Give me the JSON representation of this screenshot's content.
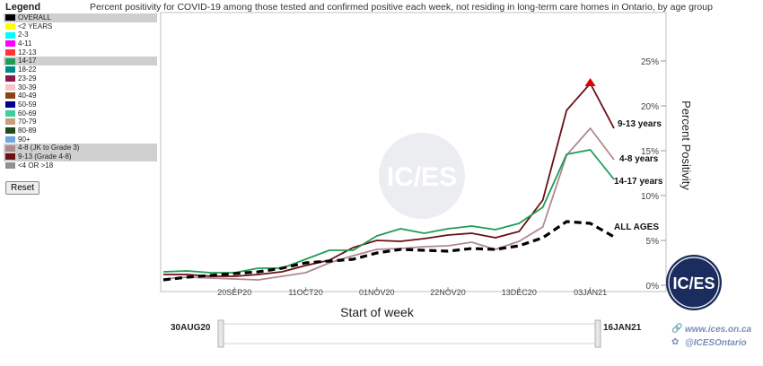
{
  "legend": {
    "title": "Legend",
    "reset_label": "Reset",
    "items": [
      {
        "label": "OVERALL",
        "color": "#000000",
        "selected": true
      },
      {
        "label": "<2 YEARS",
        "color": "#ffff00",
        "selected": false
      },
      {
        "label": "2-3",
        "color": "#00ffff",
        "selected": false
      },
      {
        "label": "4-11",
        "color": "#ff00ff",
        "selected": false
      },
      {
        "label": "12-13",
        "color": "#ff3333",
        "selected": false
      },
      {
        "label": "14-17",
        "color": "#1f9d55",
        "selected": true
      },
      {
        "label": "18-22",
        "color": "#008b8b",
        "selected": false
      },
      {
        "label": "23-29",
        "color": "#8b1a4a",
        "selected": false
      },
      {
        "label": "30-39",
        "color": "#f5c6cc",
        "selected": false
      },
      {
        "label": "40-49",
        "color": "#8b4513",
        "selected": false
      },
      {
        "label": "50-59",
        "color": "#00008b",
        "selected": false
      },
      {
        "label": "60-69",
        "color": "#3cd0a0",
        "selected": false
      },
      {
        "label": "70-79",
        "color": "#c8a078",
        "selected": false
      },
      {
        "label": "80-89",
        "color": "#1e4a1e",
        "selected": false
      },
      {
        "label": "90+",
        "color": "#6fa8dc",
        "selected": false
      },
      {
        "label": "4-8 (JK to Grade 3)",
        "color": "#b08890",
        "selected": true
      },
      {
        "label": "9-13 (Grade 4-8)",
        "color": "#6b0f14",
        "selected": true
      },
      {
        "label": "<4 OR >18",
        "color": "#909090",
        "selected": false
      }
    ]
  },
  "slider": {
    "start_label": "30AUG20",
    "end_label": "16JAN21"
  },
  "footer": {
    "website": "www.ices.on.ca",
    "twitter": "@ICESOntario",
    "logo_text": "IC/ES"
  },
  "watermark": "IC/ES",
  "chart_data": {
    "type": "line",
    "title": "Percent positivity for COVID-19 among those tested and confirmed positive each week, not residing in long-term care homes in Ontario, by age group",
    "xlabel": "Start of week",
    "ylabel": "Percent Positivity",
    "ylim": [
      0,
      30
    ],
    "y_ticks": [
      "0%",
      "5%",
      "10%",
      "15%",
      "20%",
      "25%"
    ],
    "x_ticks": [
      "20SEP20",
      "11OCT20",
      "01NOV20",
      "22NOV20",
      "13DEC20",
      "03JAN21"
    ],
    "x": [
      "30AUG20",
      "06SEP20",
      "13SEP20",
      "20SEP20",
      "27SEP20",
      "04OCT20",
      "11OCT20",
      "18OCT20",
      "25OCT20",
      "01NOV20",
      "08NOV20",
      "15NOV20",
      "22NOV20",
      "29NOV20",
      "06DEC20",
      "13DEC20",
      "20DEC20",
      "27DEC20",
      "03JAN21",
      "10JAN21"
    ],
    "series": [
      {
        "name": "9-13 years",
        "color": "#6b0f14",
        "width": 1.8,
        "dash": false,
        "values": [
          1.2,
          1.2,
          1.0,
          1.0,
          1.2,
          1.5,
          2.2,
          2.8,
          4.2,
          5.0,
          4.9,
          5.2,
          5.6,
          5.8,
          5.3,
          6.0,
          9.5,
          19.5,
          22.5,
          17.5
        ]
      },
      {
        "name": "4-8 years",
        "color": "#b08890",
        "width": 1.8,
        "dash": false,
        "values": [
          0.7,
          0.9,
          0.8,
          0.7,
          0.6,
          1.0,
          1.4,
          2.5,
          3.3,
          4.0,
          4.1,
          4.3,
          4.4,
          4.8,
          4.0,
          4.9,
          6.5,
          14.5,
          17.5,
          14.0
        ]
      },
      {
        "name": "14-17 years",
        "color": "#1f9d55",
        "width": 1.8,
        "dash": false,
        "values": [
          1.5,
          1.6,
          1.4,
          1.4,
          1.9,
          1.9,
          2.9,
          3.9,
          3.9,
          5.5,
          6.3,
          5.8,
          6.3,
          6.6,
          6.2,
          6.9,
          8.7,
          14.6,
          15.1,
          11.8
        ]
      },
      {
        "name": "ALL AGES",
        "color": "#000000",
        "width": 3.2,
        "dash": true,
        "values": [
          0.6,
          0.9,
          1.1,
          1.3,
          1.5,
          1.9,
          2.5,
          2.7,
          2.9,
          3.6,
          4.0,
          3.9,
          3.8,
          4.1,
          4.0,
          4.4,
          5.3,
          7.1,
          6.9,
          5.4
        ]
      }
    ],
    "peak_marker": {
      "series": "9-13 years",
      "x": "03JAN21",
      "color": "#e00000"
    },
    "grid": false,
    "legend_placement": "left"
  }
}
